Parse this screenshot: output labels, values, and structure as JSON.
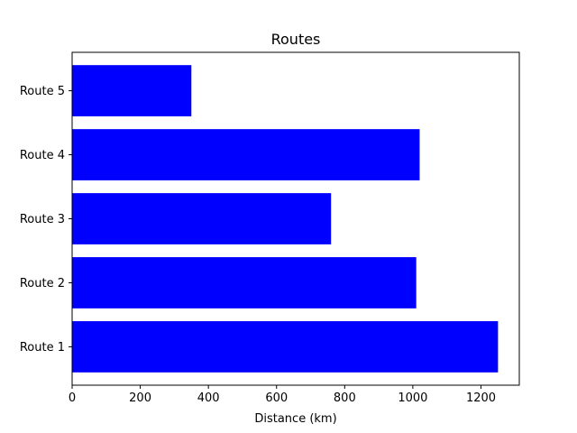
{
  "chart_data": {
    "type": "bar",
    "orientation": "horizontal",
    "title": "Routes",
    "xlabel": "Distance (km)",
    "ylabel": "",
    "categories": [
      "Route 1",
      "Route 2",
      "Route 3",
      "Route 4",
      "Route 5"
    ],
    "values": [
      1250,
      1010,
      760,
      1020,
      350
    ],
    "xlim": [
      0,
      1312.5
    ],
    "xticks": [
      0,
      200,
      400,
      600,
      800,
      1000,
      1200
    ],
    "grid": false,
    "legend": "none",
    "bar_color": "#0000ff"
  }
}
